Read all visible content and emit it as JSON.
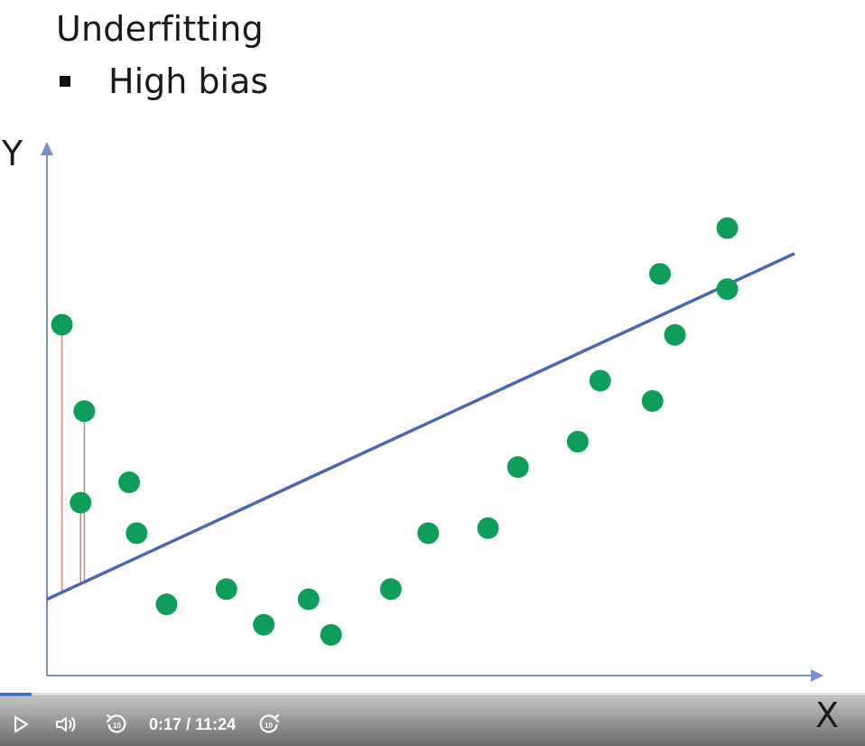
{
  "slide": {
    "title": "Underfitting",
    "bullet": "High bias"
  },
  "chart_data": {
    "type": "scatter",
    "xlabel": "X",
    "ylabel": "Y",
    "xlim": [
      0,
      10
    ],
    "ylim": [
      0,
      10
    ],
    "points": [
      {
        "x": 0.2,
        "y": 6.9
      },
      {
        "x": 0.5,
        "y": 5.2
      },
      {
        "x": 0.45,
        "y": 3.4
      },
      {
        "x": 1.1,
        "y": 3.8
      },
      {
        "x": 1.2,
        "y": 2.8
      },
      {
        "x": 1.6,
        "y": 1.4
      },
      {
        "x": 2.4,
        "y": 1.7
      },
      {
        "x": 2.9,
        "y": 1.0
      },
      {
        "x": 3.5,
        "y": 1.5
      },
      {
        "x": 3.8,
        "y": 0.8
      },
      {
        "x": 4.6,
        "y": 1.7
      },
      {
        "x": 5.1,
        "y": 2.8
      },
      {
        "x": 5.9,
        "y": 2.9
      },
      {
        "x": 6.3,
        "y": 4.1
      },
      {
        "x": 7.1,
        "y": 4.6
      },
      {
        "x": 7.4,
        "y": 5.8
      },
      {
        "x": 8.1,
        "y": 5.4
      },
      {
        "x": 8.2,
        "y": 7.9
      },
      {
        "x": 8.4,
        "y": 6.7
      },
      {
        "x": 9.1,
        "y": 7.6
      },
      {
        "x": 9.1,
        "y": 8.8
      }
    ],
    "fit_line": {
      "x": [
        0,
        10
      ],
      "y": [
        1.5,
        8.3
      ]
    },
    "residuals": [
      0,
      1,
      2
    ],
    "colors": {
      "points": "#0f9d5a",
      "line": "#4a67b5",
      "axis": "#7a8fd0",
      "residual": "#d9826a"
    }
  },
  "player": {
    "current_time": "0:17",
    "separator": "/",
    "duration": "11:24",
    "progress": 0.025,
    "progress_color": "#2f74d9"
  }
}
